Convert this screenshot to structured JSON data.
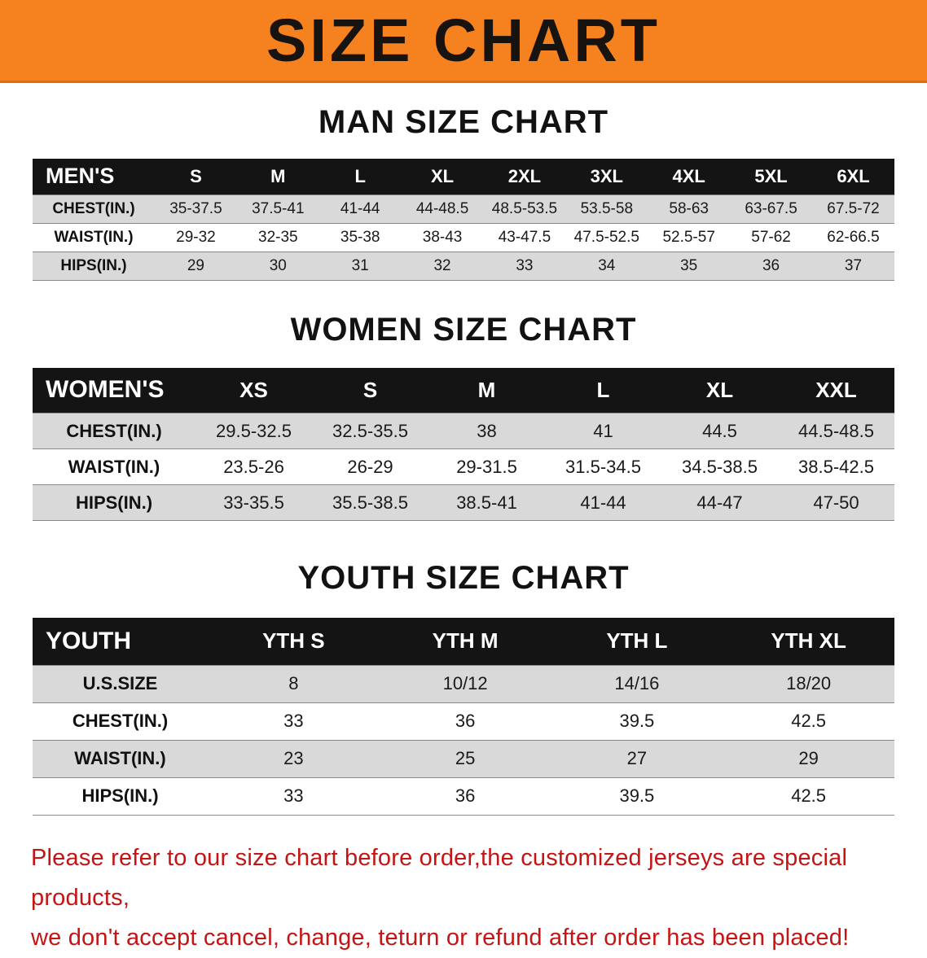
{
  "banner": {
    "title": "SIZE CHART"
  },
  "colors": {
    "banner_bg": "#f5821f",
    "header_bg": "#141414",
    "row_alt": "#d9d9d9",
    "disclaimer": "#c41414"
  },
  "men": {
    "heading": "MAN SIZE CHART",
    "label": "MEN'S",
    "sizes": [
      "S",
      "M",
      "L",
      "XL",
      "2XL",
      "3XL",
      "4XL",
      "5XL",
      "6XL"
    ],
    "rows": [
      {
        "label": "CHEST(IN.)",
        "values": [
          "35-37.5",
          "37.5-41",
          "41-44",
          "44-48.5",
          "48.5-53.5",
          "53.5-58",
          "58-63",
          "63-67.5",
          "67.5-72"
        ]
      },
      {
        "label": "WAIST(IN.)",
        "values": [
          "29-32",
          "32-35",
          "35-38",
          "38-43",
          "43-47.5",
          "47.5-52.5",
          "52.5-57",
          "57-62",
          "62-66.5"
        ]
      },
      {
        "label": "HIPS(IN.)",
        "values": [
          "29",
          "30",
          "31",
          "32",
          "33",
          "34",
          "35",
          "36",
          "37"
        ]
      }
    ]
  },
  "women": {
    "heading": "WOMEN SIZE CHART",
    "label": "WOMEN'S",
    "sizes": [
      "XS",
      "S",
      "M",
      "L",
      "XL",
      "XXL"
    ],
    "rows": [
      {
        "label": "CHEST(IN.)",
        "values": [
          "29.5-32.5",
          "32.5-35.5",
          "38",
          "41",
          "44.5",
          "44.5-48.5"
        ]
      },
      {
        "label": "WAIST(IN.)",
        "values": [
          "23.5-26",
          "26-29",
          "29-31.5",
          "31.5-34.5",
          "34.5-38.5",
          "38.5-42.5"
        ]
      },
      {
        "label": "HIPS(IN.)",
        "values": [
          "33-35.5",
          "35.5-38.5",
          "38.5-41",
          "41-44",
          "44-47",
          "47-50"
        ]
      }
    ]
  },
  "youth": {
    "heading": "YOUTH SIZE CHART",
    "label": "YOUTH",
    "sizes": [
      "YTH S",
      "YTH M",
      "YTH L",
      "YTH XL"
    ],
    "rows": [
      {
        "label": "U.S.SIZE",
        "values": [
          "8",
          "10/12",
          "14/16",
          "18/20"
        ]
      },
      {
        "label": "CHEST(IN.)",
        "values": [
          "33",
          "36",
          "39.5",
          "42.5"
        ]
      },
      {
        "label": "WAIST(IN.)",
        "values": [
          "23",
          "25",
          "27",
          "29"
        ]
      },
      {
        "label": "HIPS(IN.)",
        "values": [
          "33",
          "36",
          "39.5",
          "42.5"
        ]
      }
    ]
  },
  "disclaimer": {
    "line1": "Please refer to our size chart before order,the customized jerseys are special products,",
    "line2": "we don't accept cancel, change, teturn or refund after order has been placed!"
  }
}
